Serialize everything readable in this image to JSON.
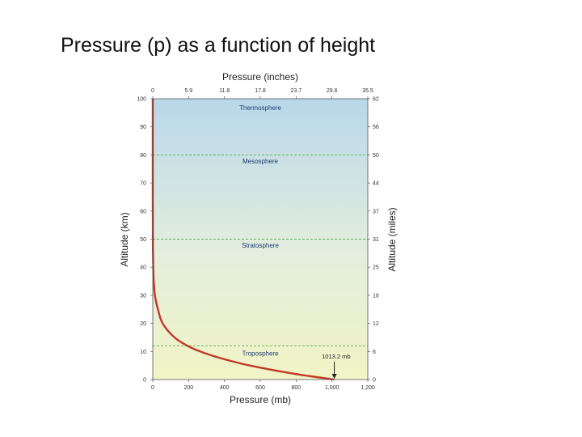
{
  "slide": {
    "title": "Pressure (p) as a function of height"
  },
  "chart_data": {
    "type": "line",
    "top_axis_label": "Pressure (inches)",
    "xlabel": "Pressure (mb)",
    "ylabel": "Altitude (km)",
    "right_axis_label": "Altitude (miles)",
    "xlim": [
      0,
      1200
    ],
    "ylim": [
      0,
      100
    ],
    "x_ticks": [
      "0",
      "200",
      "400",
      "600",
      "800",
      "1,000",
      "1,200"
    ],
    "x_tick_values": [
      0,
      200,
      400,
      600,
      800,
      1000,
      1200
    ],
    "top_ticks": [
      "0",
      "5.9",
      "11.8",
      "17.8",
      "23.7",
      "29.6",
      "35.5"
    ],
    "y_ticks": [
      "0",
      "10",
      "20",
      "30",
      "40",
      "50",
      "60",
      "70",
      "80",
      "90",
      "100"
    ],
    "y_tick_values": [
      0,
      10,
      20,
      30,
      40,
      50,
      60,
      70,
      80,
      90,
      100
    ],
    "right_ticks": [
      "0",
      "6",
      "12",
      "19",
      "25",
      "31",
      "37",
      "44",
      "50",
      "56",
      "62"
    ],
    "series": [
      {
        "x": [
          1013.2,
          795,
          540,
          357,
          265,
          194,
          121,
          55,
          28.7,
          12,
          5.5,
          2.5,
          1.0,
          0.4,
          0.1,
          0.03
        ],
        "y": [
          0,
          2,
          5,
          8,
          10,
          12,
          15,
          20,
          25,
          30,
          35,
          40,
          47,
          55,
          65,
          80
        ]
      }
    ],
    "boundaries_km": [
      12,
      50,
      80
    ],
    "layers": [
      {
        "name": "Thermosphere",
        "y": 96
      },
      {
        "name": "Mesosphere",
        "y": 77
      },
      {
        "name": "Stratosphere",
        "y": 47
      },
      {
        "name": "Troposphere",
        "y": 8.5
      }
    ],
    "annotation": {
      "text": "1013.2 mb",
      "x": 1013.2,
      "y": 0
    },
    "colors": {
      "curve": "#c0392b",
      "boundary": "#5aaa5a",
      "bg_top": "#b9d7ea",
      "bg_bottom": "#f1f4c5"
    },
    "grid": false
  }
}
